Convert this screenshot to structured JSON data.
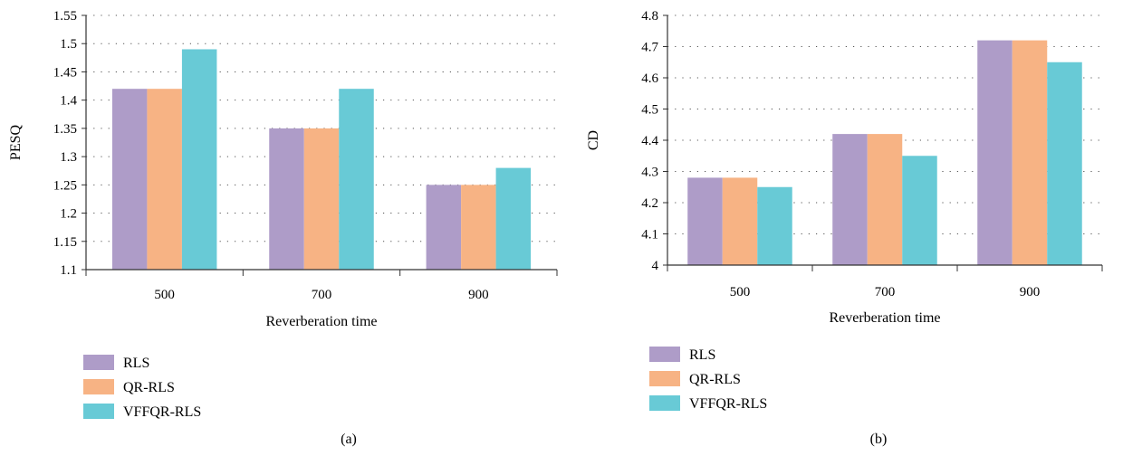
{
  "colors": {
    "RLS": "#ae9cc8",
    "QR-RLS": "#f7b384",
    "VFFQR-RLS": "#68cad6"
  },
  "chart_data": [
    {
      "type": "bar",
      "caption": "(a)",
      "categories": [
        "500",
        "700",
        "900"
      ],
      "series": [
        {
          "name": "RLS",
          "values": [
            1.42,
            1.35,
            1.25
          ]
        },
        {
          "name": "QR-RLS",
          "values": [
            1.42,
            1.35,
            1.25
          ]
        },
        {
          "name": "VFFQR-RLS",
          "values": [
            1.49,
            1.42,
            1.28
          ]
        }
      ],
      "xlabel": "Reverberation time",
      "ylabel": "PESQ",
      "ylim": [
        1.1,
        1.55
      ],
      "yticks": [
        "1.1",
        "1.15",
        "1.2",
        "1.25",
        "1.3",
        "1.35",
        "1.4",
        "1.45",
        "1.5",
        "1.55"
      ],
      "grid": "horizontal dotted",
      "legend": "bottom-left"
    },
    {
      "type": "bar",
      "caption": "(b)",
      "categories": [
        "500",
        "700",
        "900"
      ],
      "series": [
        {
          "name": "RLS",
          "values": [
            4.28,
            4.42,
            4.72
          ]
        },
        {
          "name": "QR-RLS",
          "values": [
            4.28,
            4.42,
            4.72
          ]
        },
        {
          "name": "VFFQR-RLS",
          "values": [
            4.25,
            4.35,
            4.65
          ]
        }
      ],
      "xlabel": "Reverberation time",
      "ylabel": "CD",
      "ylim": [
        4.0,
        4.8
      ],
      "yticks": [
        "4",
        "4.1",
        "4.2",
        "4.3",
        "4.4",
        "4.5",
        "4.6",
        "4.7",
        "4.8"
      ],
      "grid": "horizontal dotted",
      "legend": "bottom-left"
    }
  ]
}
